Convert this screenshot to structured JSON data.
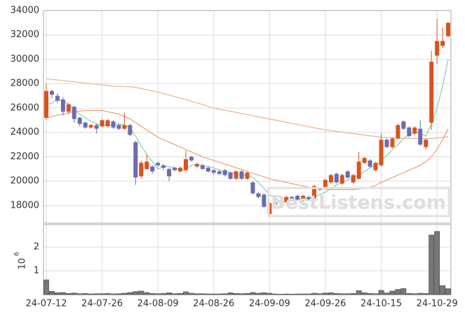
{
  "chart_data": [
    {
      "type": "candlestick",
      "up_color": "#d9531e",
      "down_color": "#6b6bb0",
      "open": [
        25200,
        27400,
        27000,
        26700,
        25700,
        26100,
        25200,
        24800,
        24400,
        24600,
        24500,
        24500,
        24900,
        24600,
        24300,
        24600,
        23200,
        20400,
        21000,
        21200,
        21500,
        21300,
        21000,
        21100,
        20800,
        20900,
        22000,
        21200,
        21300,
        21100,
        20900,
        20800,
        20900,
        20700,
        20200,
        20800,
        20200,
        19900,
        19000,
        18900,
        17300,
        18300,
        18300,
        18300,
        18700,
        18800,
        18400,
        18700,
        18600,
        19400,
        19400,
        19900,
        20600,
        19800,
        20800,
        19900,
        20200,
        21500,
        21700,
        20900,
        21300,
        23400,
        22800,
        23500,
        24900,
        24400,
        23900,
        24300,
        22800,
        24800,
        30300,
        31100,
        31900
      ],
      "high": [
        28000,
        27500,
        27200,
        26900,
        26400,
        26200,
        25300,
        24900,
        24700,
        24700,
        25100,
        25100,
        25000,
        24700,
        25600,
        24700,
        23300,
        21700,
        22200,
        21300,
        21600,
        21400,
        21100,
        21200,
        21200,
        22500,
        22100,
        21500,
        21400,
        21200,
        21000,
        20900,
        21000,
        20800,
        20900,
        20900,
        20800,
        20000,
        19100,
        19000,
        18300,
        18400,
        18400,
        18800,
        18800,
        18900,
        18900,
        18800,
        19700,
        19500,
        20200,
        20600,
        20700,
        20600,
        20900,
        20600,
        22400,
        22000,
        21800,
        21600,
        23900,
        23500,
        23600,
        24700,
        25000,
        24500,
        24500,
        25000,
        23500,
        30700,
        33300,
        32600,
        33000
      ],
      "low": [
        25000,
        26800,
        26400,
        25400,
        25500,
        24800,
        24500,
        24300,
        24300,
        23900,
        24400,
        24400,
        24300,
        24200,
        24200,
        23700,
        19700,
        20200,
        20900,
        20600,
        21200,
        20900,
        20000,
        20800,
        20700,
        20800,
        21600,
        21100,
        20900,
        20700,
        20500,
        20500,
        20400,
        20100,
        20100,
        20100,
        20100,
        18900,
        18600,
        17800,
        17200,
        18000,
        18100,
        18200,
        18400,
        18400,
        18300,
        18400,
        18500,
        19200,
        19300,
        19800,
        19800,
        19700,
        20200,
        19800,
        20100,
        21400,
        21100,
        20800,
        21200,
        22700,
        22700,
        23400,
        24200,
        23600,
        23800,
        22900,
        22600,
        24200,
        29600,
        30900,
        31800
      ],
      "close": [
        27400,
        27100,
        26600,
        25700,
        26300,
        25100,
        24700,
        24400,
        24600,
        24300,
        25000,
        25000,
        24400,
        24300,
        24600,
        23800,
        20300,
        21500,
        21600,
        20800,
        21300,
        21100,
        20400,
        20900,
        21100,
        21800,
        21700,
        21400,
        21000,
        20800,
        20700,
        20600,
        20500,
        20200,
        20800,
        20200,
        20700,
        19000,
        18700,
        17900,
        18200,
        18100,
        18200,
        18700,
        18500,
        18500,
        18800,
        18500,
        19600,
        19300,
        20100,
        20500,
        19900,
        20500,
        20300,
        20500,
        21600,
        21900,
        21200,
        21500,
        23400,
        22800,
        23500,
        24600,
        24300,
        23700,
        24400,
        23000,
        23400,
        29800,
        31500,
        31500,
        33000
      ],
      "series": [
        {
          "color": "#8fd3b0",
          "values": [
            26300,
            26400,
            26700,
            26600,
            26300,
            25900,
            25500,
            25200,
            24900,
            24700,
            24600,
            24600,
            24600,
            24700,
            24600,
            24400,
            23700,
            22900,
            22200,
            21600,
            21000,
            21200,
            21200,
            21100,
            20900,
            21000,
            21300,
            21400,
            21300,
            21200,
            21100,
            20900,
            20800,
            20700,
            20600,
            20500,
            20500,
            20300,
            19900,
            19400,
            18900,
            18600,
            18300,
            18300,
            18400,
            18500,
            18600,
            18600,
            18700,
            18900,
            19100,
            19400,
            19700,
            19900,
            20100,
            20300,
            20500,
            20800,
            21100,
            21300,
            21700,
            22100,
            22600,
            23000,
            23500,
            23800,
            24000,
            23900,
            23700,
            24700,
            26000,
            27800,
            30000
          ]
        },
        {
          "color": "#eea585",
          "values": [
            25200,
            25300,
            25400,
            25500,
            25600,
            25700,
            25750,
            25800,
            25800,
            25800,
            25800,
            25700,
            25600,
            25500,
            25300,
            25100,
            24800,
            24500,
            24200,
            23900,
            23600,
            23400,
            23200,
            23000,
            22800,
            22600,
            22400,
            22200,
            22000,
            21850,
            21700,
            21550,
            21400,
            21250,
            21100,
            20950,
            20800,
            20650,
            20500,
            20350,
            20200,
            20100,
            20000,
            19900,
            19800,
            19700,
            19600,
            19500,
            19450,
            19400,
            19350,
            19300,
            19300,
            19300,
            19300,
            19300,
            19350,
            19400,
            19500,
            19650,
            19900,
            20100,
            20300,
            20500,
            20700,
            20900,
            21100,
            21300,
            21600,
            22000,
            22600,
            23400,
            24300
          ]
        },
        {
          "color": "#eab89a",
          "values": [
            28400,
            28350,
            28300,
            28250,
            28200,
            28150,
            28100,
            28050,
            28000,
            27950,
            27900,
            27850,
            27800,
            27780,
            27760,
            27740,
            27700,
            27600,
            27500,
            27400,
            27300,
            27180,
            27060,
            26940,
            26820,
            26700,
            26560,
            26420,
            26280,
            26140,
            26000,
            25910,
            25820,
            25730,
            25640,
            25550,
            25460,
            25370,
            25280,
            25190,
            25100,
            25010,
            24920,
            24830,
            24740,
            24650,
            24560,
            24470,
            24380,
            24290,
            24200,
            24140,
            24080,
            24020,
            23960,
            23900,
            23840,
            23780,
            23720,
            23660,
            23600,
            23580,
            23560,
            23540,
            23520,
            23500,
            23500,
            23500,
            23500,
            23500,
            23550,
            23600,
            23650
          ]
        }
      ],
      "ylim": [
        16560,
        34000
      ],
      "yticks": [
        18000,
        20000,
        22000,
        24000,
        26000,
        28000,
        30000,
        32000,
        34000
      ],
      "grid": true,
      "watermark": "BestListens.com"
    },
    {
      "type": "bar",
      "categories": [
        "24-07-12",
        null,
        null,
        null,
        null,
        null,
        null,
        null,
        null,
        null,
        "24-07-26",
        null,
        null,
        null,
        null,
        null,
        null,
        null,
        null,
        null,
        "24-08-09",
        null,
        null,
        null,
        null,
        null,
        null,
        null,
        null,
        null,
        "24-08-26",
        null,
        null,
        null,
        null,
        null,
        null,
        null,
        null,
        null,
        "24-09-09",
        null,
        null,
        null,
        null,
        null,
        null,
        null,
        null,
        null,
        "24-09-26",
        null,
        null,
        null,
        null,
        null,
        null,
        null,
        null,
        null,
        "24-10-15",
        null,
        null,
        null,
        null,
        null,
        null,
        null,
        null,
        null,
        "24-10-29",
        null,
        null
      ],
      "values": [
        0.62,
        0.14,
        0.08,
        0.09,
        0.05,
        0.07,
        0.04,
        0.05,
        0.03,
        0.04,
        0.04,
        0.05,
        0.03,
        0.04,
        0.06,
        0.09,
        0.13,
        0.15,
        0.09,
        0.05,
        0.04,
        0.05,
        0.08,
        0.04,
        0.05,
        0.12,
        0.06,
        0.04,
        0.04,
        0.03,
        0.03,
        0.03,
        0.04,
        0.08,
        0.05,
        0.04,
        0.05,
        0.09,
        0.06,
        0.08,
        0.06,
        0.03,
        0.02,
        0.03,
        0.02,
        0.03,
        0.03,
        0.03,
        0.06,
        0.04,
        0.07,
        0.08,
        0.05,
        0.04,
        0.04,
        0.05,
        0.17,
        0.08,
        0.05,
        0.04,
        0.18,
        0.07,
        0.15,
        0.22,
        0.26,
        0.05,
        0.04,
        0.06,
        0.05,
        2.5,
        2.65,
        0.38,
        0.25
      ],
      "color": "#777777",
      "ylim": [
        0,
        2.94
      ],
      "yticks": [
        1,
        2
      ],
      "grid": true,
      "offset_label": {
        "base": "10",
        "exponent": "6"
      }
    }
  ]
}
